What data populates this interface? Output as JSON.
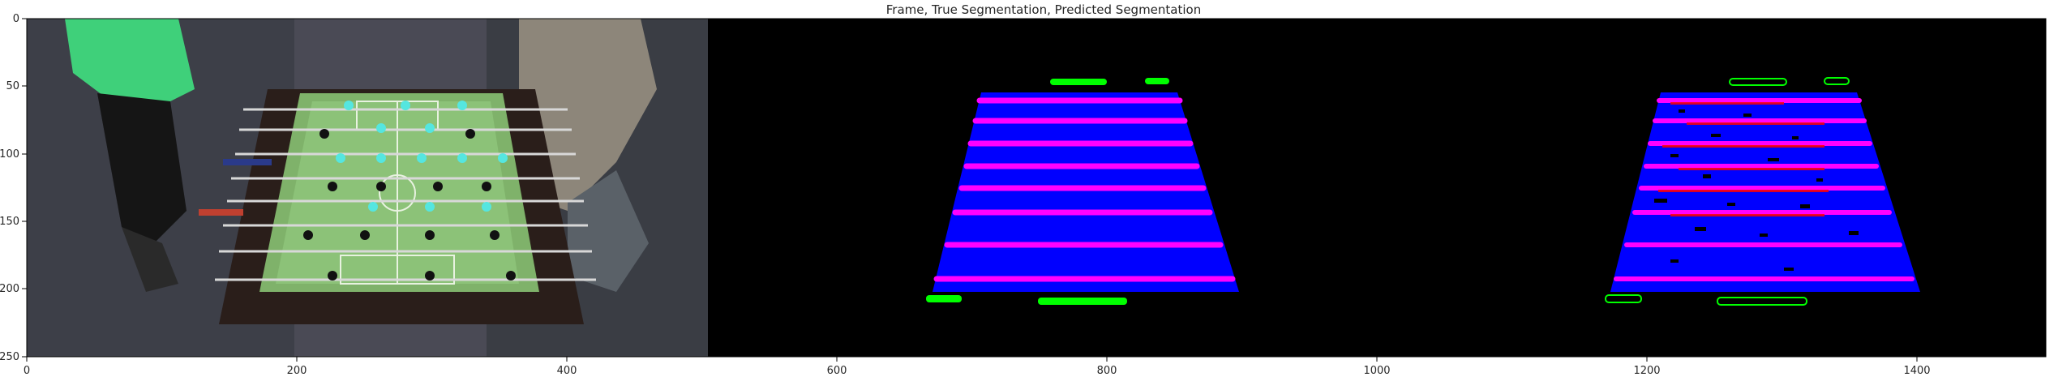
{
  "figure": {
    "title": "Frame, True Segmentation, Predicted Segmentation"
  },
  "axes": {
    "x_ticks": [
      "0",
      "200",
      "400",
      "600",
      "800",
      "1000",
      "1200",
      "1400"
    ],
    "y_ticks": [
      "0",
      "50",
      "100",
      "150",
      "200",
      "250"
    ]
  },
  "image_panels": [
    {
      "name": "frame-panel",
      "content": "foosball table photo"
    },
    {
      "name": "true-segmentation-panel",
      "content": "segmentation mask"
    },
    {
      "name": "predicted-segmentation-panel",
      "content": "segmentation mask"
    }
  ],
  "colors": {
    "background": "#000000",
    "field": "#0000ff",
    "rods": "#ff00ff",
    "goals": "#00ff00",
    "noise_red": "#ff0000"
  }
}
